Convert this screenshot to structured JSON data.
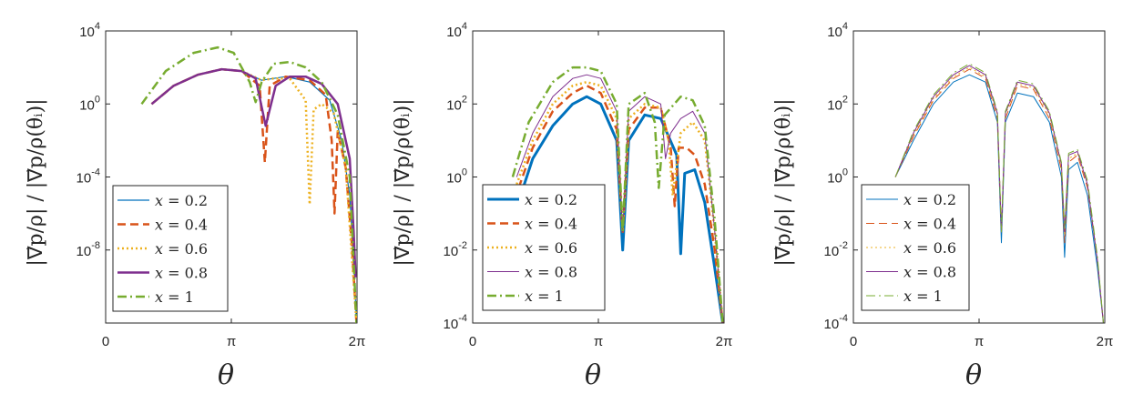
{
  "figure": {
    "xlabel": "θ",
    "ylabel": "|∇⃗p/ρ| / |∇⃗p/ρ(θᵢ)|",
    "xticks": [
      {
        "value": 0,
        "label": "0"
      },
      {
        "value": 3.14159,
        "label": "π"
      },
      {
        "value": 6.28318,
        "label": "2π"
      }
    ],
    "legend_labels": [
      "x = 0.2",
      "x = 0.4",
      "x = 0.6",
      "x = 0.8",
      "x = 1"
    ],
    "series_colors": [
      "#0072BD",
      "#D95319",
      "#EDB120",
      "#7E2F8E",
      "#77AC30"
    ]
  },
  "chart_data": [
    {
      "type": "line",
      "scale_y": "log",
      "xlim": [
        0,
        6.28318
      ],
      "ylim_exp": [
        -12,
        4
      ],
      "yticks": [
        {
          "exp": 4,
          "label": "10^4"
        },
        {
          "exp": 0,
          "label": "10^0"
        },
        {
          "exp": -4,
          "label": "10^-4"
        },
        {
          "exp": -8,
          "label": "10^-8"
        }
      ],
      "series": [
        {
          "name": "x = 0.2",
          "style": "solid",
          "width": 1.2,
          "x": [
            1.15,
            1.7,
            2.3,
            2.9,
            3.4,
            3.9,
            4.5,
            5.1,
            5.6,
            5.9,
            6.1,
            6.2,
            6.27
          ],
          "y": [
            0,
            1.0,
            1.6,
            1.9,
            1.8,
            1.3,
            1.5,
            1.2,
            0.2,
            -2.0,
            -5.0,
            -8.5,
            -12
          ]
        },
        {
          "name": "x = 0.4",
          "style": "dashed",
          "width": 2.5,
          "x": [
            1.15,
            1.7,
            2.3,
            2.9,
            3.4,
            3.85,
            3.98,
            4.1,
            4.5,
            5.1,
            5.5,
            5.65,
            5.72,
            5.8,
            6.0,
            6.15,
            6.27
          ],
          "y": [
            0,
            1.0,
            1.6,
            1.9,
            1.8,
            1.0,
            -3.2,
            1.0,
            1.5,
            1.3,
            0.5,
            -2.0,
            -6.0,
            -1.5,
            -3.5,
            -7.5,
            -12
          ]
        },
        {
          "name": "x = 0.6",
          "style": "dotted",
          "width": 2.5,
          "x": [
            1.15,
            1.7,
            2.3,
            2.9,
            3.4,
            3.9,
            4.2,
            4.6,
            5.0,
            5.1,
            5.2,
            5.4,
            5.7,
            6.0,
            6.27
          ],
          "y": [
            0,
            1.0,
            1.6,
            1.9,
            1.8,
            1.3,
            1.4,
            1.4,
            0.2,
            -5.5,
            -0.3,
            0.0,
            -0.5,
            -3.5,
            -12
          ]
        },
        {
          "name": "x = 0.8",
          "style": "solid",
          "width": 2.5,
          "x": [
            1.15,
            1.7,
            2.3,
            2.9,
            3.4,
            3.75,
            4.0,
            4.25,
            4.6,
            5.0,
            5.4,
            5.8,
            6.1,
            6.2,
            6.25
          ],
          "y": [
            0,
            1.0,
            1.6,
            1.9,
            1.8,
            1.4,
            -1.2,
            1.0,
            1.5,
            1.5,
            1.1,
            0.0,
            -3.0,
            -7.0,
            -9.5
          ]
        },
        {
          "name": "x = 1",
          "style": "dashdot",
          "width": 2.5,
          "x": [
            0.9,
            1.5,
            2.2,
            2.8,
            3.2,
            3.6,
            3.75,
            3.9,
            4.2,
            4.6,
            5.0,
            5.4,
            5.8,
            6.1,
            6.27
          ],
          "y": [
            0,
            1.8,
            2.8,
            3.1,
            2.8,
            1.2,
            0.1,
            1.2,
            2.2,
            2.3,
            2.0,
            1.2,
            -0.6,
            -4.0,
            -12
          ]
        }
      ]
    },
    {
      "type": "line",
      "scale_y": "log",
      "xlim": [
        0,
        6.28318
      ],
      "ylim_exp": [
        -4,
        4
      ],
      "yticks": [
        {
          "exp": 4,
          "label": "10^4"
        },
        {
          "exp": 2,
          "label": "10^2"
        },
        {
          "exp": 0,
          "label": "10^0"
        },
        {
          "exp": -2,
          "label": "10^-2"
        },
        {
          "exp": -4,
          "label": "10^-4"
        }
      ],
      "series": [
        {
          "name": "x = 0.2",
          "style": "solid",
          "width": 3.0,
          "x": [
            1.2,
            1.5,
            2.0,
            2.5,
            2.85,
            3.2,
            3.6,
            3.75,
            3.9,
            4.3,
            4.7,
            5.1,
            5.2,
            5.3,
            5.55,
            5.8,
            6.05,
            6.25
          ],
          "y": [
            -0.5,
            0.5,
            1.4,
            2.0,
            2.2,
            2.0,
            1.0,
            -2.0,
            1.0,
            1.7,
            1.6,
            0.6,
            -2.1,
            0.1,
            0.2,
            -0.7,
            -2.5,
            -4.0
          ]
        },
        {
          "name": "x = 0.4",
          "style": "dashed",
          "width": 2.5,
          "x": [
            1.15,
            1.5,
            2.0,
            2.5,
            2.85,
            3.2,
            3.6,
            3.75,
            3.9,
            4.3,
            4.7,
            4.95,
            5.05,
            5.15,
            5.35,
            5.55,
            5.8,
            6.05,
            6.25
          ],
          "y": [
            -0.3,
            0.8,
            1.8,
            2.3,
            2.5,
            2.3,
            1.3,
            -1.5,
            1.3,
            1.9,
            1.9,
            0.8,
            -0.8,
            0.8,
            0.8,
            0.6,
            -0.2,
            -2.0,
            -4.0
          ]
        },
        {
          "name": "x = 0.6",
          "style": "dotted",
          "width": 2.5,
          "x": [
            1.1,
            1.5,
            2.0,
            2.5,
            2.85,
            3.2,
            3.6,
            3.75,
            3.9,
            4.3,
            4.7,
            4.9,
            5.0,
            5.2,
            5.5,
            5.8,
            6.05,
            6.25
          ],
          "y": [
            -0.2,
            1.0,
            2.0,
            2.5,
            2.6,
            2.5,
            1.6,
            -1.5,
            1.6,
            2.0,
            1.9,
            1.0,
            -0.5,
            1.2,
            1.5,
            1.0,
            -1.5,
            -4.0
          ]
        },
        {
          "name": "x = 0.8",
          "style": "solid",
          "width": 1.0,
          "x": [
            1.1,
            1.5,
            2.0,
            2.5,
            2.85,
            3.2,
            3.6,
            3.75,
            3.9,
            4.3,
            4.7,
            4.82,
            4.95,
            5.2,
            5.5,
            5.8,
            6.05,
            6.25
          ],
          "y": [
            0,
            1.2,
            2.2,
            2.7,
            2.8,
            2.7,
            1.8,
            -1.5,
            1.8,
            2.2,
            2.0,
            0.5,
            1.2,
            1.6,
            1.8,
            1.2,
            -1.5,
            -4.0
          ]
        },
        {
          "name": "x = 1",
          "style": "dashdot",
          "width": 2.5,
          "x": [
            1.0,
            1.4,
            2.0,
            2.5,
            2.85,
            3.2,
            3.6,
            3.75,
            3.9,
            4.3,
            4.55,
            4.65,
            4.8,
            5.2,
            5.5,
            5.8,
            6.05,
            6.25
          ],
          "y": [
            0,
            1.5,
            2.6,
            3.0,
            3.0,
            2.9,
            2.0,
            -1.5,
            2.0,
            2.3,
            1.5,
            -0.3,
            1.7,
            2.2,
            2.1,
            1.4,
            -1.2,
            -4.0
          ]
        }
      ]
    },
    {
      "type": "line",
      "scale_y": "log",
      "xlim": [
        0,
        6.28318
      ],
      "ylim_exp": [
        -4,
        4
      ],
      "yticks": [
        {
          "exp": 4,
          "label": "10^4"
        },
        {
          "exp": 2,
          "label": "10^2"
        },
        {
          "exp": 0,
          "label": "10^0"
        },
        {
          "exp": -2,
          "label": "10^-2"
        },
        {
          "exp": -4,
          "label": "10^-4"
        }
      ],
      "series": [
        {
          "name": "x = 0.2",
          "style": "solid",
          "width": 1.0,
          "x": [
            1.05,
            1.5,
            2.0,
            2.5,
            2.9,
            3.3,
            3.6,
            3.7,
            3.8,
            4.1,
            4.5,
            4.9,
            5.2,
            5.28,
            5.38,
            5.6,
            5.85,
            6.1,
            6.25
          ],
          "y": [
            0,
            1.0,
            2.0,
            2.6,
            2.8,
            2.6,
            1.5,
            -1.8,
            1.5,
            2.3,
            2.2,
            1.5,
            0.0,
            -2.2,
            0.2,
            0.4,
            -0.5,
            -2.5,
            -4.0
          ]
        },
        {
          "name": "x = 0.4",
          "style": "dashed",
          "width": 1.0,
          "x": [
            1.05,
            1.5,
            2.0,
            2.5,
            2.9,
            3.3,
            3.6,
            3.7,
            3.8,
            4.1,
            4.5,
            4.9,
            5.2,
            5.28,
            5.38,
            5.6,
            5.85,
            6.1,
            6.25
          ],
          "y": [
            0,
            1.1,
            2.1,
            2.7,
            2.95,
            2.7,
            1.6,
            -1.5,
            1.6,
            2.5,
            2.4,
            1.6,
            0.2,
            -1.8,
            0.4,
            0.6,
            -0.3,
            -2.3,
            -4.0
          ]
        },
        {
          "name": "x = 0.6",
          "style": "dotted",
          "width": 1.0,
          "x": [
            1.05,
            1.5,
            2.0,
            2.5,
            2.9,
            3.3,
            3.6,
            3.7,
            3.8,
            4.1,
            4.5,
            4.9,
            5.2,
            5.28,
            5.38,
            5.6,
            5.85,
            6.1,
            6.25
          ],
          "y": [
            0,
            1.15,
            2.15,
            2.75,
            3.0,
            2.75,
            1.7,
            -1.5,
            1.7,
            2.55,
            2.45,
            1.7,
            0.3,
            -1.6,
            0.5,
            0.65,
            -0.2,
            -2.3,
            -4.0
          ]
        },
        {
          "name": "x = 0.8",
          "style": "solid",
          "width": 1.0,
          "x": [
            1.05,
            1.5,
            2.0,
            2.5,
            2.9,
            3.3,
            3.6,
            3.7,
            3.8,
            4.1,
            4.5,
            4.9,
            5.2,
            5.28,
            5.38,
            5.6,
            5.85,
            6.1,
            6.25
          ],
          "y": [
            0,
            1.2,
            2.2,
            2.8,
            3.05,
            2.8,
            1.75,
            -1.5,
            1.75,
            2.6,
            2.5,
            1.75,
            0.35,
            -1.5,
            0.6,
            0.7,
            -0.2,
            -2.3,
            -4.0
          ]
        },
        {
          "name": "x = 1",
          "style": "dashdot",
          "width": 1.0,
          "x": [
            1.05,
            1.5,
            2.0,
            2.5,
            2.9,
            3.3,
            3.6,
            3.7,
            3.8,
            4.1,
            4.5,
            4.9,
            5.2,
            5.28,
            5.38,
            5.6,
            5.85,
            6.1,
            6.25
          ],
          "y": [
            0,
            1.25,
            2.25,
            2.85,
            3.1,
            2.85,
            1.8,
            -1.5,
            1.8,
            2.65,
            2.55,
            1.8,
            0.4,
            -1.4,
            0.65,
            0.75,
            -0.1,
            -2.2,
            -4.0
          ]
        }
      ]
    }
  ]
}
